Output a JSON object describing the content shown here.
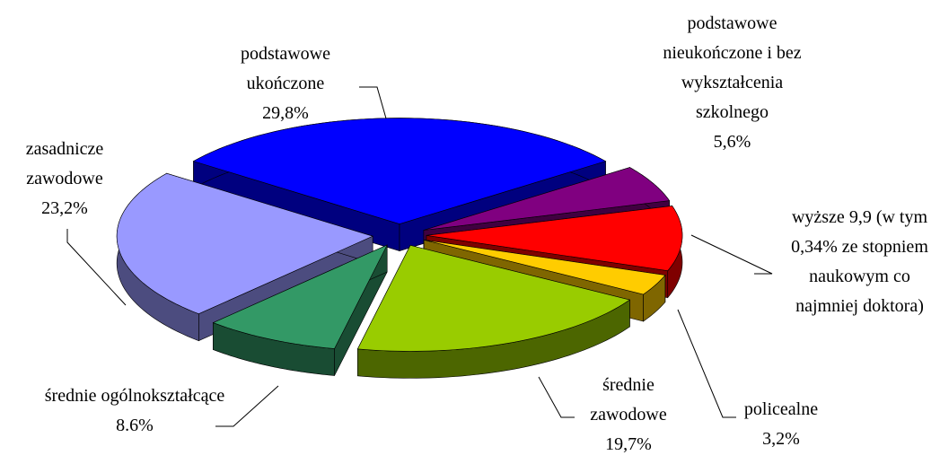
{
  "chart_data": {
    "type": "pie",
    "categories": [
      "podstawowe ukończone",
      "podstawowe nieukończone i bez wykształcenia szkolnego",
      "wyższe",
      "policealne",
      "średnie zawodowe",
      "średnie ogólnokształcące",
      "zasadnicze zawodowe"
    ],
    "values": [
      29.8,
      5.6,
      9.9,
      3.2,
      19.7,
      8.6,
      23.2
    ],
    "value_labels": [
      "29,8%",
      "5,6%",
      "9,9 (w tym 0,34% ze stopniem naukowym co najmniej doktora)",
      "3,2%",
      "19,7%",
      "8.6%",
      "23,2%"
    ],
    "colors": [
      "#0000ff",
      "#800080",
      "#ff0000",
      "#ffcc00",
      "#99cc00",
      "#339966",
      "#9999ff"
    ]
  }
}
